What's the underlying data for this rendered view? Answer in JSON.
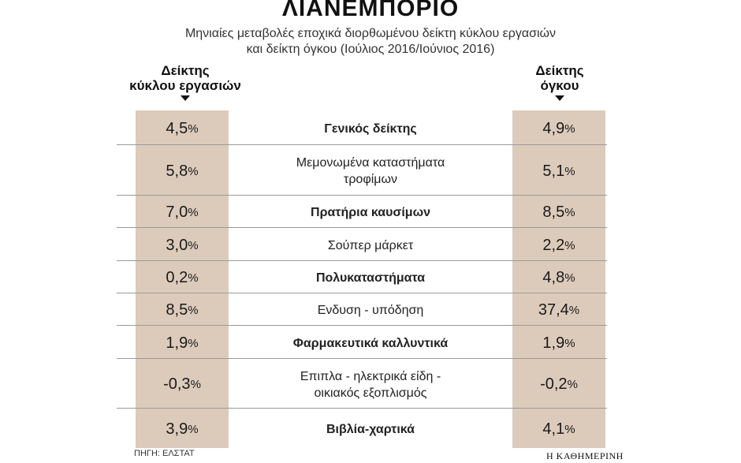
{
  "header": {
    "title": "ΛΙΑΝΕΜΠΟΡΙΟ",
    "subtitle_line1": "Μηνιαίες μεταβολές εποχικά διορθωμένου δείκτη κύκλου εργασιών",
    "subtitle_line2": "και δείκτη όγκου (Ιούλιος 2016/Ιούνιος 2016)"
  },
  "columns": {
    "left_line1": "Δείκτης",
    "left_line2": "κύκλου εργασιών",
    "right_line1": "Δείκτης",
    "right_line2": "όγκου"
  },
  "chart_data": {
    "type": "table",
    "percent_sign": "%",
    "columns": [
      "Δείκτης κύκλου εργασιών",
      "Δείκτης όγκου"
    ],
    "rows": [
      {
        "category_lines": [
          "Γενικός δείκτης"
        ],
        "bold": true,
        "turnover": "4,5",
        "volume": "4,9"
      },
      {
        "category_lines": [
          "Μεμονωμένα καταστήματα",
          "τροφίμων"
        ],
        "bold": false,
        "turnover": "5,8",
        "volume": "5,1"
      },
      {
        "category_lines": [
          "Πρατήρια καυσίμων"
        ],
        "bold": true,
        "turnover": "7,0",
        "volume": "8,5"
      },
      {
        "category_lines": [
          "Σούπερ μάρκετ"
        ],
        "bold": false,
        "turnover": "3,0",
        "volume": "2,2"
      },
      {
        "category_lines": [
          "Πολυκαταστήματα"
        ],
        "bold": true,
        "turnover": "0,2",
        "volume": "4,8"
      },
      {
        "category_lines": [
          "Ενδυση - υπόδηση"
        ],
        "bold": false,
        "turnover": "8,5",
        "volume": "37,4"
      },
      {
        "category_lines": [
          "Φαρμακευτικά καλλυντικά"
        ],
        "bold": true,
        "turnover": "1,9",
        "volume": "1,9"
      },
      {
        "category_lines": [
          "Επιπλα - ηλεκτρικά είδη -",
          "οικιακός εξοπλισμός"
        ],
        "bold": false,
        "turnover": "-0,3",
        "volume": "-0,2"
      },
      {
        "category_lines": [
          "Βιβλία-χαρτικά"
        ],
        "bold": true,
        "turnover": "3,9",
        "volume": "4,1"
      }
    ],
    "colors": {
      "band": "#dccbbb",
      "rule": "#9a9a9a",
      "text": "#1a1a1a"
    }
  },
  "footer": {
    "source": "ΠΗΓΗ: ΕΛΣΤΑΤ",
    "brand": "Η ΚΑΘΗΜΕΡΙΝΗ"
  }
}
